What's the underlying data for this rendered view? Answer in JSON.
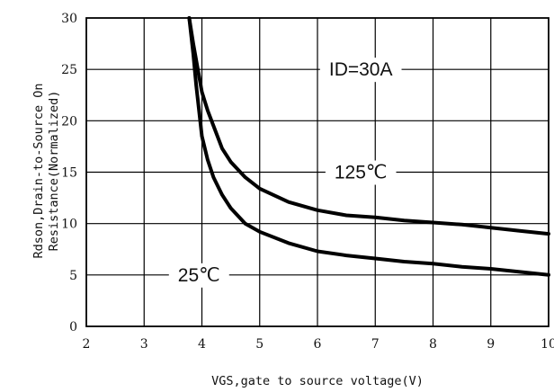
{
  "chart_data": {
    "type": "line",
    "xlabel": "VGS,gate to source voltage(V)",
    "ylabel_line1": "Rdson,Drain-to-Source On",
    "ylabel_line2": "Resistance(Normalized)",
    "xlim": [
      2,
      10
    ],
    "ylim": [
      0,
      30
    ],
    "xticks": [
      2,
      3,
      4,
      5,
      6,
      7,
      8,
      9,
      10
    ],
    "yticks": [
      0,
      5,
      10,
      15,
      20,
      25,
      30
    ],
    "grid": true,
    "annotations": [
      {
        "text": "ID=30A",
        "x": 6.75,
        "y": 25
      },
      {
        "text": "125℃",
        "x": 6.75,
        "y": 15
      },
      {
        "text": "25℃",
        "x": 3.95,
        "y": 5
      }
    ],
    "series": [
      {
        "label": "125℃",
        "x": [
          3.78,
          3.85,
          3.93,
          4.0,
          4.1,
          4.2,
          4.35,
          4.5,
          4.75,
          5.0,
          5.5,
          6.0,
          6.5,
          7.0,
          7.5,
          8.0,
          8.5,
          9.0,
          9.5,
          10.0
        ],
        "y": [
          30,
          27.5,
          25,
          22.8,
          21,
          19.5,
          17.3,
          16,
          14.5,
          13.4,
          12.1,
          11.3,
          10.8,
          10.6,
          10.3,
          10.1,
          9.9,
          9.6,
          9.3,
          9.0
        ]
      },
      {
        "label": "25℃",
        "x": [
          3.78,
          3.85,
          3.9,
          3.95,
          4.0,
          4.1,
          4.2,
          4.35,
          4.5,
          4.75,
          5.0,
          5.5,
          6.0,
          6.5,
          7.0,
          7.5,
          8.0,
          8.5,
          9.0,
          9.5,
          10.0
        ],
        "y": [
          30,
          26.5,
          23.5,
          21,
          18.5,
          16.2,
          14.5,
          12.8,
          11.5,
          10.0,
          9.2,
          8.1,
          7.3,
          6.9,
          6.6,
          6.3,
          6.1,
          5.8,
          5.6,
          5.3,
          5.0
        ]
      }
    ]
  }
}
